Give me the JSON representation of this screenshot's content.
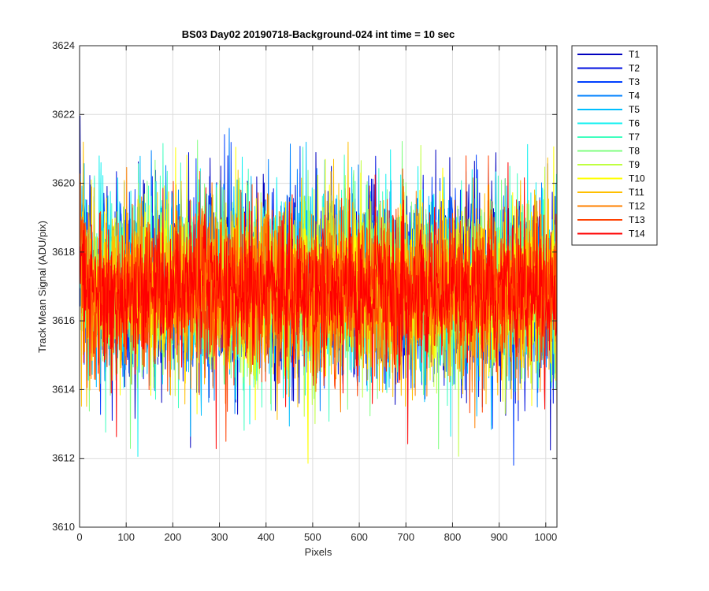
{
  "chart_data": {
    "type": "line",
    "title": "BS03 Day02 20190718-Background-024 int time = 10 sec",
    "xlabel": "Pixels",
    "ylabel": "Track Mean Signal (ADU/pix)",
    "xlim": [
      0,
      1024
    ],
    "ylim": [
      3610,
      3624
    ],
    "xticks": [
      0,
      100,
      200,
      300,
      400,
      500,
      600,
      700,
      800,
      900,
      1000
    ],
    "yticks": [
      3610,
      3612,
      3614,
      3616,
      3618,
      3620,
      3622,
      3624
    ],
    "grid": true,
    "legend_location": "outside-top-right",
    "x_start": 1,
    "x_count": 1024,
    "series": [
      {
        "name": "T1",
        "color": "#0000bf",
        "mean": 3617.0,
        "spread": 1.25,
        "peak": 3621.6
      },
      {
        "name": "T2",
        "color": "#0010e0",
        "mean": 3617.0,
        "spread": 1.25,
        "peak": 3621.3
      },
      {
        "name": "T3",
        "color": "#0040ff",
        "mean": 3617.0,
        "spread": 1.25,
        "peak": 3621.0
      },
      {
        "name": "T4",
        "color": "#0080ff",
        "mean": 3617.0,
        "spread": 1.2,
        "peak": 3621.0
      },
      {
        "name": "T5",
        "color": "#00bfff",
        "mean": 3617.0,
        "spread": 1.2,
        "peak": 3621.5
      },
      {
        "name": "T6",
        "color": "#10f0f0",
        "mean": 3617.0,
        "spread": 1.2,
        "peak": 3621.4
      },
      {
        "name": "T7",
        "color": "#40ffbf",
        "mean": 3617.0,
        "spread": 1.2,
        "peak": 3621.2
      },
      {
        "name": "T8",
        "color": "#80ff80",
        "mean": 3617.0,
        "spread": 1.15,
        "peak": 3621.0
      },
      {
        "name": "T9",
        "color": "#bfff40",
        "mean": 3617.0,
        "spread": 1.15,
        "peak": 3620.8
      },
      {
        "name": "T10",
        "color": "#ffff00",
        "mean": 3617.0,
        "spread": 1.15,
        "peak": 3620.6
      },
      {
        "name": "T11",
        "color": "#ffbf00",
        "mean": 3617.0,
        "spread": 1.15,
        "peak": 3620.6
      },
      {
        "name": "T12",
        "color": "#ff8000",
        "mean": 3616.9,
        "spread": 1.1,
        "peak": 3620.4
      },
      {
        "name": "T13",
        "color": "#ff4000",
        "mean": 3616.9,
        "spread": 1.1,
        "peak": 3620.2
      },
      {
        "name": "T14",
        "color": "#ff0000",
        "mean": 3616.8,
        "spread": 1.0,
        "peak": 3620.0
      }
    ]
  }
}
